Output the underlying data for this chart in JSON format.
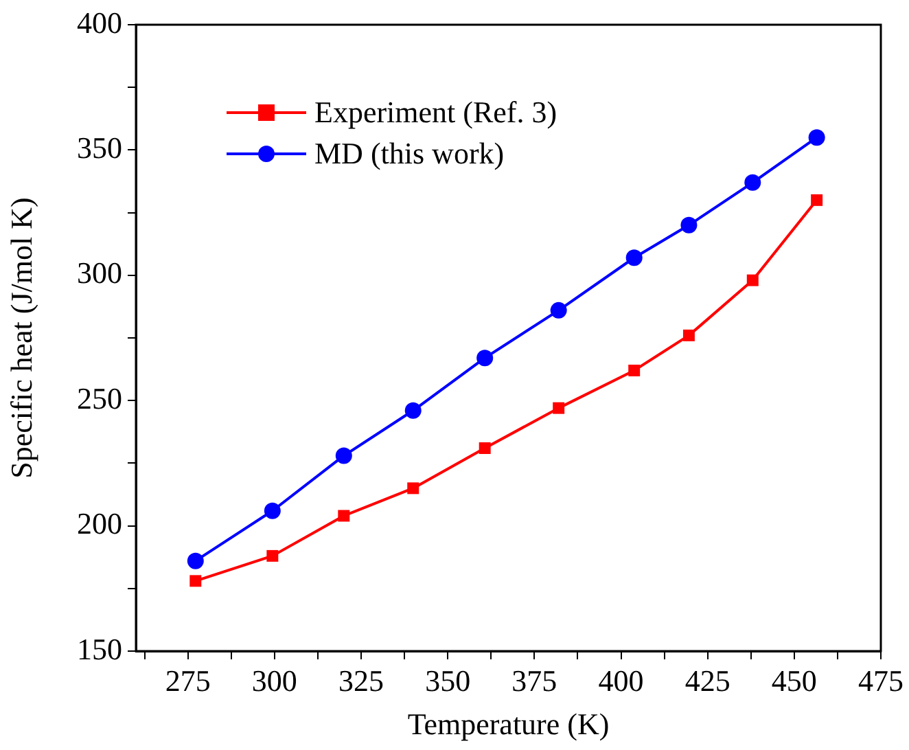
{
  "chart_data": {
    "type": "line",
    "xlabel": "Temperature (K)",
    "ylabel": "Specific heat (J/mol K)",
    "xlim": [
      260,
      475
    ],
    "xticks": [
      {
        "value": 262.5,
        "label": null
      },
      275,
      {
        "value": 287.5,
        "label": null
      },
      300,
      {
        "value": 312.5,
        "label": null
      },
      325,
      {
        "value": 337.5,
        "label": null
      },
      350,
      {
        "value": 362.5,
        "label": null
      },
      375,
      {
        "value": 387.5,
        "label": null
      },
      400,
      {
        "value": 412.5,
        "label": null
      },
      425,
      {
        "value": 437.5,
        "label": null
      },
      450,
      {
        "value": 462.5,
        "label": null
      },
      475
    ],
    "ylim": [
      150,
      400
    ],
    "yticks": [
      150,
      {
        "value": 175,
        "label": null
      },
      200,
      {
        "value": 225,
        "label": null
      },
      250,
      {
        "value": 275,
        "label": null
      },
      300,
      {
        "value": 325,
        "label": null
      },
      350,
      {
        "value": 375,
        "label": null
      },
      400
    ],
    "x": [
      277.2,
      299.4,
      320,
      340,
      360.7,
      382,
      403.8,
      419.6,
      438,
      456.5
    ],
    "series": [
      {
        "name": "Experiment (Ref. 3)",
        "color": "#ff0000",
        "marker": "square",
        "values": [
          178,
          188,
          204,
          215,
          231,
          247,
          262,
          276,
          298,
          330
        ]
      },
      {
        "name": "MD (this work)",
        "color": "#0000ff",
        "marker": "circle",
        "values": [
          186,
          206,
          228,
          246,
          267,
          286,
          307,
          320,
          337,
          355
        ]
      }
    ],
    "legend": "top left",
    "grid": false
  }
}
